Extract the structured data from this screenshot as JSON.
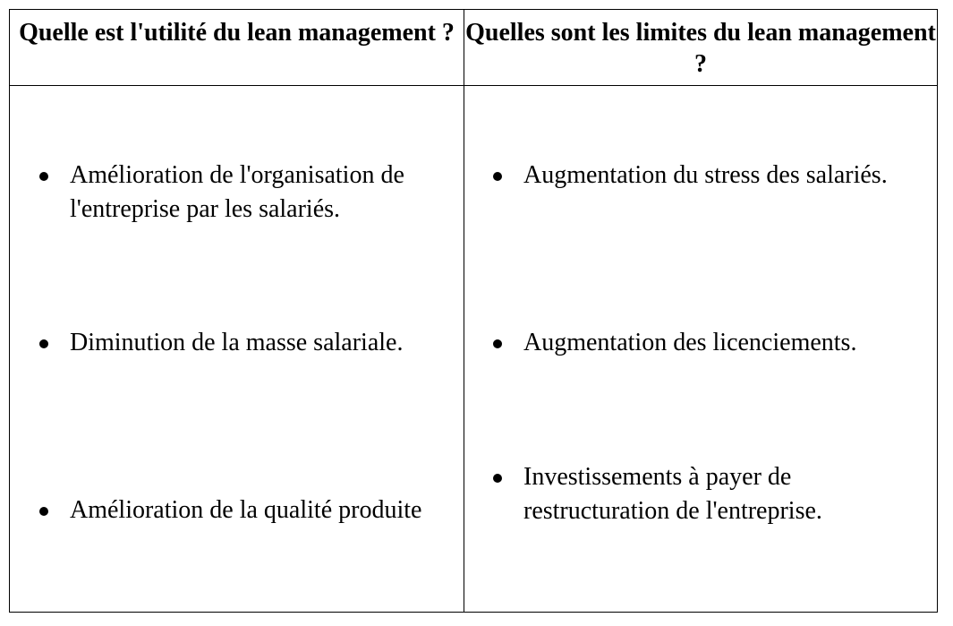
{
  "table": {
    "headers": [
      "Quelle est l'utilité du lean management ?",
      "Quelles sont les limites du lean management ?"
    ],
    "left_items": [
      "Amélioration de l'organisation de l'entreprise par les salariés.",
      "Diminution de la masse salariale.",
      "Amélioration de la qualité produite"
    ],
    "right_items": [
      "Augmentation du stress des salariés.",
      "Augmentation des licenciements.",
      "Investissements à payer de restructuration de l'entreprise."
    ]
  },
  "icons": {
    "bullet": "bullet-dot-icon"
  },
  "colors": {
    "text": "#000000",
    "border": "#000000",
    "background": "#ffffff"
  }
}
